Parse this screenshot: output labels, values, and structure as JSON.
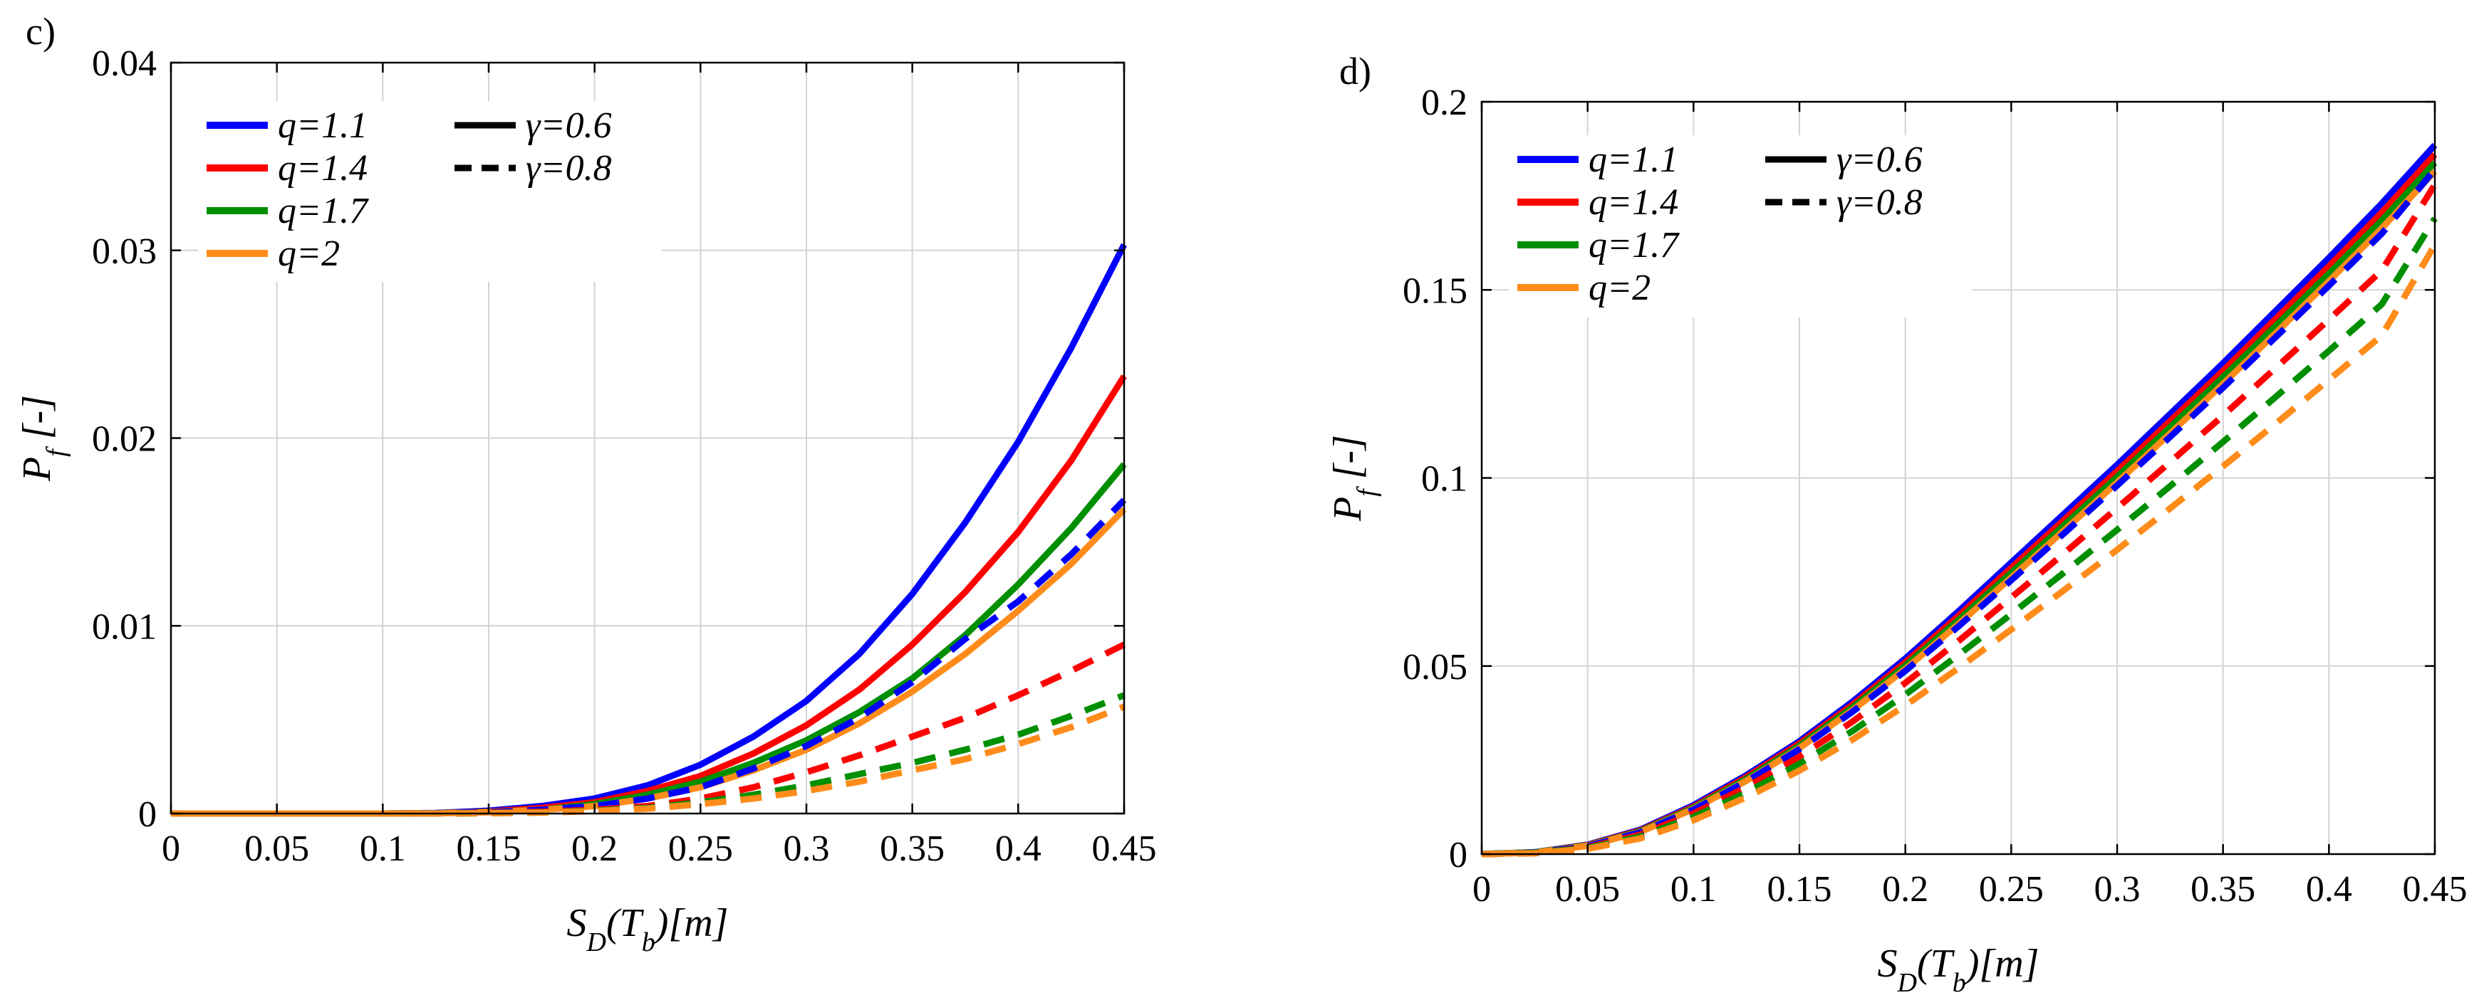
{
  "chart_data": [
    {
      "type": "line",
      "panel_label": "c)",
      "xlabel": "S_D(T_b)[m]",
      "xlabel_parts": {
        "main": "S",
        "sub": "D",
        "open": "(T",
        "sub2": "b",
        "close": ")[m]"
      },
      "ylabel": "P_f [-]",
      "ylabel_parts": {
        "main": "P",
        "sub": "f",
        "rest": " [-]"
      },
      "xlim": [
        0,
        0.45
      ],
      "ylim": [
        0,
        0.04
      ],
      "xticks": [
        0,
        0.05,
        0.1,
        0.15,
        0.2,
        0.25,
        0.3,
        0.35,
        0.4,
        0.45
      ],
      "xtick_labels": [
        "0",
        "0.05",
        "0.1",
        "0.15",
        "0.2",
        "0.25",
        "0.3",
        "0.35",
        "0.4",
        "0.45"
      ],
      "yticks": [
        0,
        0.01,
        0.02,
        0.03,
        0.04
      ],
      "ytick_labels": [
        "0",
        "0.01",
        "0.02",
        "0.03",
        "0.04"
      ],
      "grid": true,
      "legend_position": "top-left",
      "legend": {
        "colors": [
          {
            "label": "q=1.1",
            "color": "#0000ff"
          },
          {
            "label": "q=1.4",
            "color": "#ff0000"
          },
          {
            "label": "q=1.7",
            "color": "#008f00"
          },
          {
            "label": "q=2",
            "color": "#ff8c1a"
          }
        ],
        "styles": [
          {
            "label": "γ=0.6",
            "dash": "solid"
          },
          {
            "label": "γ=0.8",
            "dash": "dashed"
          }
        ]
      },
      "x": [
        0,
        0.025,
        0.05,
        0.075,
        0.1,
        0.125,
        0.15,
        0.175,
        0.2,
        0.225,
        0.25,
        0.275,
        0.3,
        0.325,
        0.35,
        0.375,
        0.4,
        0.425,
        0.45
      ],
      "series": [
        {
          "name": "q=1.1, γ=0.6",
          "color": "#0000ff",
          "dash": "solid",
          "values": [
            0,
            0,
            0,
            0,
            0,
            3e-05,
            0.00015,
            0.0004,
            0.0008,
            0.0015,
            0.0026,
            0.0041,
            0.006,
            0.0085,
            0.0117,
            0.0155,
            0.0198,
            0.0248,
            0.0303
          ]
        },
        {
          "name": "q=1.4, γ=0.6",
          "color": "#ff0000",
          "dash": "solid",
          "values": [
            0,
            0,
            0,
            0,
            0,
            2e-05,
            0.0001,
            0.0003,
            0.0006,
            0.0012,
            0.002,
            0.0032,
            0.0047,
            0.0066,
            0.009,
            0.0118,
            0.015,
            0.0188,
            0.0233
          ]
        },
        {
          "name": "q=1.7, γ=0.6",
          "color": "#008f00",
          "dash": "solid",
          "values": [
            0,
            0,
            0,
            0,
            0,
            2e-05,
            8e-05,
            0.0002,
            0.0005,
            0.001,
            0.0017,
            0.0027,
            0.0039,
            0.0054,
            0.0072,
            0.0095,
            0.0122,
            0.0152,
            0.0186
          ]
        },
        {
          "name": "q=2, γ=0.6",
          "color": "#ff8c1a",
          "dash": "solid",
          "values": [
            0,
            0,
            0,
            0,
            0,
            1e-05,
            7e-05,
            0.0002,
            0.0004,
            0.0008,
            0.0014,
            0.0023,
            0.0034,
            0.0048,
            0.0065,
            0.0085,
            0.0108,
            0.0133,
            0.0162
          ]
        },
        {
          "name": "q=1.1, γ=0.8",
          "color": "#0000ff",
          "dash": "dashed",
          "values": [
            0,
            0,
            0,
            0,
            0,
            1e-05,
            6e-05,
            0.0002,
            0.0004,
            0.0008,
            0.0014,
            0.0024,
            0.0036,
            0.0051,
            0.007,
            0.0093,
            0.0113,
            0.0138,
            0.0167
          ]
        },
        {
          "name": "q=1.4, γ=0.8",
          "color": "#ff0000",
          "dash": "dashed",
          "values": [
            0,
            0,
            0,
            0,
            0,
            0,
            3e-05,
            0.0001,
            0.0002,
            0.0004,
            0.0008,
            0.0014,
            0.0022,
            0.0031,
            0.0041,
            0.0051,
            0.0063,
            0.0076,
            0.009
          ]
        },
        {
          "name": "q=1.7, γ=0.8",
          "color": "#008f00",
          "dash": "dashed",
          "values": [
            0,
            0,
            0,
            0,
            0,
            0,
            2e-05,
            6e-05,
            0.00015,
            0.0003,
            0.0006,
            0.001,
            0.0015,
            0.0021,
            0.0027,
            0.0034,
            0.0042,
            0.0052,
            0.0063
          ]
        },
        {
          "name": "q=2, γ=0.8",
          "color": "#ff8c1a",
          "dash": "dashed",
          "values": [
            0,
            0,
            0,
            0,
            0,
            0,
            2e-05,
            5e-05,
            0.00013,
            0.00026,
            0.0005,
            0.0008,
            0.0012,
            0.0017,
            0.0023,
            0.0029,
            0.0037,
            0.0046,
            0.0057
          ]
        }
      ]
    },
    {
      "type": "line",
      "panel_label": "d)",
      "xlabel": "S_D(T_b)[m]",
      "xlabel_parts": {
        "main": "S",
        "sub": "D",
        "open": "(T",
        "sub2": "b",
        "close": ")[m]"
      },
      "ylabel": "P_f [-]",
      "ylabel_parts": {
        "main": "P",
        "sub": "f",
        "rest": " [-]"
      },
      "xlim": [
        0,
        0.45
      ],
      "ylim": [
        0,
        0.2
      ],
      "xticks": [
        0,
        0.05,
        0.1,
        0.15,
        0.2,
        0.25,
        0.3,
        0.35,
        0.4,
        0.45
      ],
      "xtick_labels": [
        "0",
        "0.05",
        "0.1",
        "0.15",
        "0.2",
        "0.25",
        "0.3",
        "0.35",
        "0.4",
        "0.45"
      ],
      "yticks": [
        0,
        0.05,
        0.1,
        0.15,
        0.2
      ],
      "ytick_labels": [
        "0",
        "0.05",
        "0.1",
        "0.15",
        "0.2"
      ],
      "grid": true,
      "legend_position": "top-left",
      "legend": {
        "colors": [
          {
            "label": "q=1.1",
            "color": "#0000ff"
          },
          {
            "label": "q=1.4",
            "color": "#ff0000"
          },
          {
            "label": "q=1.7",
            "color": "#008f00"
          },
          {
            "label": "q=2",
            "color": "#ff8c1a"
          }
        ],
        "styles": [
          {
            "label": "γ=0.6",
            "dash": "solid"
          },
          {
            "label": "γ=0.8",
            "dash": "dashed"
          }
        ]
      },
      "x": [
        0,
        0.025,
        0.05,
        0.075,
        0.1,
        0.125,
        0.15,
        0.175,
        0.2,
        0.225,
        0.25,
        0.275,
        0.3,
        0.325,
        0.35,
        0.375,
        0.4,
        0.425,
        0.45
      ],
      "series": [
        {
          "name": "q=1.1, γ=0.6",
          "color": "#0000ff",
          "dash": "solid",
          "values": [
            0,
            0.0005,
            0.0025,
            0.0065,
            0.013,
            0.021,
            0.03,
            0.0405,
            0.052,
            0.0645,
            0.0775,
            0.0905,
            0.1035,
            0.117,
            0.1305,
            0.1445,
            0.1585,
            0.173,
            0.1885
          ]
        },
        {
          "name": "q=1.4, γ=0.6",
          "color": "#ff0000",
          "dash": "solid",
          "values": [
            0,
            0.0005,
            0.0024,
            0.0063,
            0.0126,
            0.0205,
            0.0294,
            0.0397,
            0.051,
            0.0633,
            0.0761,
            0.0889,
            0.1018,
            0.1151,
            0.1285,
            0.1424,
            0.1563,
            0.1706,
            0.186
          ]
        },
        {
          "name": "q=1.7, γ=0.6",
          "color": "#008f00",
          "dash": "solid",
          "values": [
            0,
            0.0005,
            0.0023,
            0.0061,
            0.0123,
            0.02,
            0.0288,
            0.039,
            0.0501,
            0.0622,
            0.0748,
            0.0875,
            0.1003,
            0.1135,
            0.1268,
            0.1405,
            0.1543,
            0.1685,
            0.1838
          ]
        },
        {
          "name": "q=2, γ=0.6",
          "color": "#ff8c1a",
          "dash": "solid",
          "values": [
            0,
            0.0004,
            0.0022,
            0.0059,
            0.012,
            0.0195,
            0.0282,
            0.0382,
            0.0492,
            0.0611,
            0.0735,
            0.0861,
            0.0988,
            0.1118,
            0.125,
            0.1386,
            0.1523,
            0.1664,
            0.1815
          ]
        },
        {
          "name": "q=1.1, γ=0.8",
          "color": "#0000ff",
          "dash": "dashed",
          "values": [
            0,
            0.0004,
            0.0021,
            0.0058,
            0.0118,
            0.0193,
            0.0279,
            0.0378,
            0.0487,
            0.0605,
            0.0728,
            0.0853,
            0.098,
            0.1109,
            0.124,
            0.1375,
            0.1511,
            0.165,
            0.182
          ]
        },
        {
          "name": "q=1.4, γ=0.8",
          "color": "#ff0000",
          "dash": "dashed",
          "values": [
            0,
            0.0003,
            0.0018,
            0.0052,
            0.0108,
            0.0178,
            0.0259,
            0.0352,
            0.0455,
            0.0566,
            0.0682,
            0.08,
            0.092,
            0.1042,
            0.1166,
            0.1293,
            0.1421,
            0.1552,
            0.178
          ]
        },
        {
          "name": "q=1.7, γ=0.8",
          "color": "#008f00",
          "dash": "dashed",
          "values": [
            0,
            0.0003,
            0.0016,
            0.0047,
            0.0099,
            0.0164,
            0.024,
            0.0327,
            0.0424,
            0.0529,
            0.0638,
            0.0749,
            0.0862,
            0.0978,
            0.1096,
            0.1216,
            0.1338,
            0.1462,
            0.169
          ]
        },
        {
          "name": "q=2, γ=0.8",
          "color": "#ff8c1a",
          "dash": "dashed",
          "values": [
            0,
            0.0002,
            0.0014,
            0.0042,
            0.009,
            0.0151,
            0.0222,
            0.0304,
            0.0395,
            0.0494,
            0.0597,
            0.0702,
            0.0809,
            0.0919,
            0.1031,
            0.1145,
            0.1261,
            0.1379,
            0.162
          ]
        }
      ]
    }
  ]
}
